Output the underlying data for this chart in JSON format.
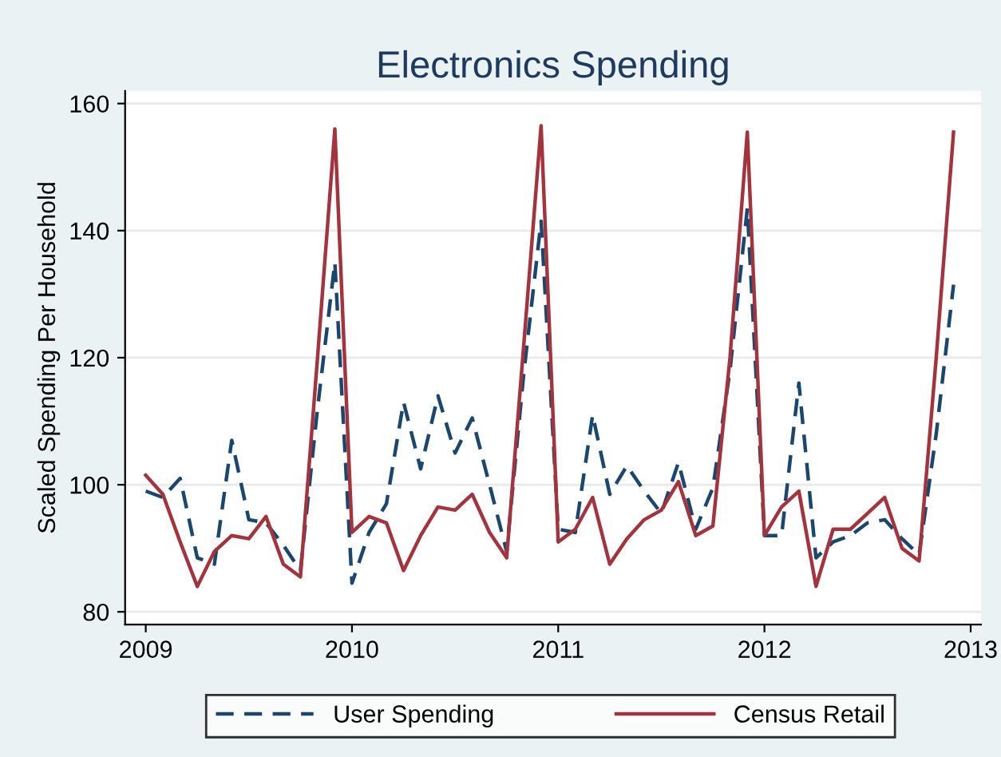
{
  "chart_data": {
    "type": "line",
    "title": "Electronics Spending",
    "ylabel": "Scaled Spending Per Household",
    "x": [
      2009.0,
      2009.083,
      2009.167,
      2009.25,
      2009.333,
      2009.417,
      2009.5,
      2009.583,
      2009.667,
      2009.75,
      2009.833,
      2009.917,
      2010.0,
      2010.083,
      2010.167,
      2010.25,
      2010.333,
      2010.417,
      2010.5,
      2010.583,
      2010.667,
      2010.75,
      2010.833,
      2010.917,
      2011.0,
      2011.083,
      2011.167,
      2011.25,
      2011.333,
      2011.417,
      2011.5,
      2011.583,
      2011.667,
      2011.75,
      2011.833,
      2011.917,
      2012.0,
      2012.083,
      2012.167,
      2012.25,
      2012.333,
      2012.417,
      2012.5,
      2012.583,
      2012.667,
      2012.75,
      2012.833,
      2012.917
    ],
    "series": [
      {
        "name": "User Spending",
        "color": "#1a476f",
        "line_style": "dashed",
        "values": [
          99,
          98,
          101,
          88.5,
          87.5,
          107,
          94.5,
          94,
          90.5,
          86.5,
          112,
          135,
          84.5,
          92.5,
          97,
          113,
          102.5,
          114,
          105,
          110.5,
          100,
          89.5,
          117.5,
          141.5,
          93,
          92.5,
          111,
          98.5,
          103,
          99,
          95.5,
          103.5,
          93,
          99.5,
          118,
          143.5,
          92,
          92,
          116,
          88.5,
          91,
          92,
          94,
          94.5,
          91.5,
          89,
          108,
          131.5
        ]
      },
      {
        "name": "Census Retail",
        "color": "#a3333d",
        "line_style": "solid",
        "values": [
          101.5,
          98.5,
          91,
          84,
          89.5,
          92,
          91.5,
          95,
          87.5,
          85.5,
          120,
          156,
          92.5,
          95,
          94,
          86.5,
          92,
          96.5,
          96,
          98.5,
          92.5,
          88.5,
          122,
          156.5,
          91,
          93,
          98,
          87.5,
          91.5,
          94.5,
          96,
          100.5,
          92,
          93.5,
          120,
          155.5,
          92,
          96.5,
          99,
          84,
          93,
          93,
          95.5,
          98,
          90,
          88,
          120,
          155.5
        ]
      }
    ],
    "xlim": [
      2008.9,
      2013.05
    ],
    "xticks": [
      2009,
      2010,
      2011,
      2012,
      2013
    ],
    "ylim": [
      78,
      162
    ],
    "yticks": [
      80,
      100,
      120,
      140,
      160
    ],
    "grid": "y",
    "legend": "bottom"
  }
}
